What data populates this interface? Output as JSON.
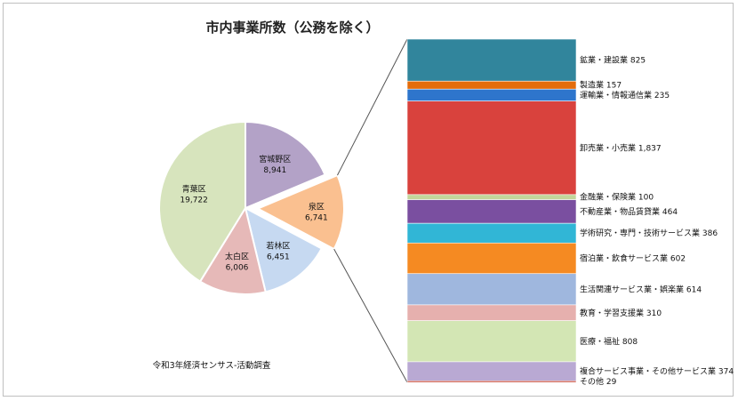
{
  "chart_data": {
    "type": "pie",
    "title": "市内事業所数（公務を除く）",
    "source": "令和3年経済センサス-活動調査",
    "pie": [
      {
        "name": "青葉区",
        "value": 19722,
        "display": "19,722",
        "color": "#d7e4bd"
      },
      {
        "name": "宮城野区",
        "value": 8941,
        "display": "8,941",
        "color": "#b3a2c7"
      },
      {
        "name": "泉区",
        "value": 6741,
        "display": "6,741",
        "color": "#fac090",
        "exploded": true
      },
      {
        "name": "若林区",
        "value": 6451,
        "display": "6,451",
        "color": "#c6d9f1"
      },
      {
        "name": "太白区",
        "value": 6006,
        "display": "6,006",
        "color": "#e6b9b8"
      }
    ],
    "breakdown_of": "泉区",
    "bar": [
      {
        "name": "鉱業・建設業",
        "value": 825,
        "display": "825",
        "color": "#31859c"
      },
      {
        "name": "製造業",
        "value": 157,
        "display": "157",
        "color": "#e46c0a"
      },
      {
        "name": "運輸業・情報通信業",
        "value": 235,
        "display": "235",
        "color": "#2e75cc"
      },
      {
        "name": "卸売業・小売業",
        "value": 1837,
        "display": "1,837",
        "color": "#d9423d"
      },
      {
        "name": "金融業・保険業",
        "value": 100,
        "display": "100",
        "color": "#c3d69b"
      },
      {
        "name": "不動産業・物品賃貸業",
        "value": 464,
        "display": "464",
        "color": "#7a4fa0"
      },
      {
        "name": "学術研究・専門・技術サービス業",
        "value": 386,
        "display": "386",
        "color": "#31b6d6"
      },
      {
        "name": "宿泊業・飲食サービス業",
        "value": 602,
        "display": "602",
        "color": "#f58a22"
      },
      {
        "name": "生活関連サービス業・娯楽業",
        "value": 614,
        "display": "614",
        "color": "#9fb7de"
      },
      {
        "name": "教育・学習支援業",
        "value": 310,
        "display": "310",
        "color": "#e6b0ae"
      },
      {
        "name": "医療・福祉",
        "value": 808,
        "display": "808",
        "color": "#d3e6b4"
      },
      {
        "name": "複合サービス事業・その他サービス業",
        "value": 374,
        "display": "374",
        "color": "#b9a9d3"
      },
      {
        "name": "その他",
        "value": 29,
        "display": "29",
        "color": "#c0392b"
      }
    ]
  }
}
